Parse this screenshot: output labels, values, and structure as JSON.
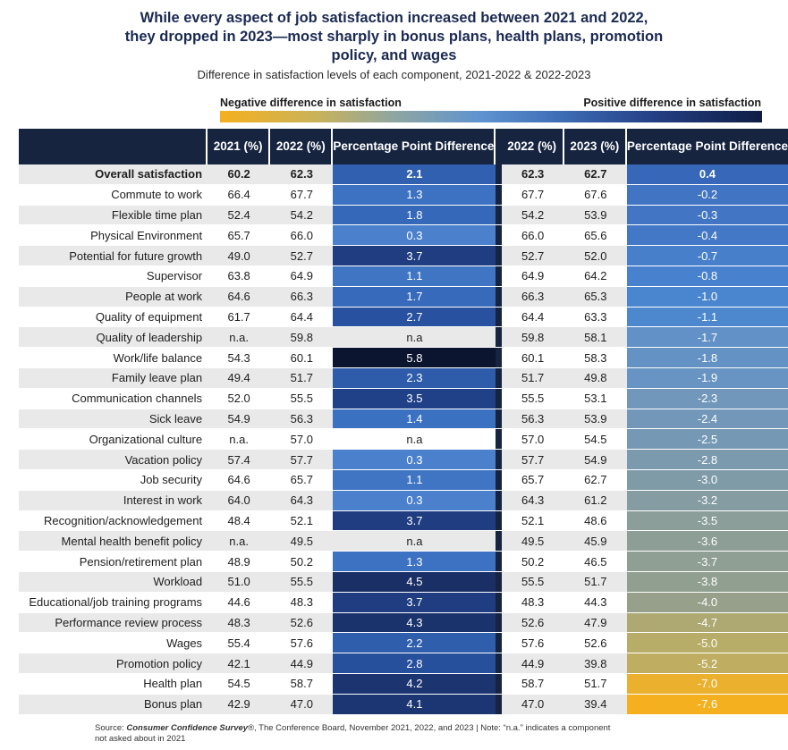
{
  "title_lines": [
    "While every aspect of job satisfaction increased between 2021 and 2022,",
    "they dropped in 2023—most sharply in bonus plans, health plans, promotion",
    "policy, and wages"
  ],
  "subtitle": "Difference in satisfaction levels of each component, 2021-2022 & 2022-2023",
  "legend": {
    "negative": "Negative difference in satisfaction",
    "positive": "Positive difference in satisfaction",
    "colors": {
      "negative": "#f5b01f",
      "mid": "#5f93d0",
      "positive": "#0f1d44"
    }
  },
  "chart_data": {
    "type": "table",
    "headers": [
      "",
      "2021 (%)",
      "2022 (%)",
      "Percentage Point Difference",
      "2022 (%)",
      "2023 (%)",
      "Percentage Point Difference"
    ],
    "rows": [
      {
        "label": "Overall satisfaction",
        "y2021": "60.2",
        "y2022a": "62.3",
        "d1": "2.1",
        "y2022b": "62.3",
        "y2023": "62.7",
        "d2": "0.4",
        "bold": true
      },
      {
        "label": "Commute to work",
        "y2021": "66.4",
        "y2022a": "67.7",
        "d1": "1.3",
        "y2022b": "67.7",
        "y2023": "67.6",
        "d2": "-0.2"
      },
      {
        "label": "Flexible time plan",
        "y2021": "52.4",
        "y2022a": "54.2",
        "d1": "1.8",
        "y2022b": "54.2",
        "y2023": "53.9",
        "d2": "-0.3"
      },
      {
        "label": "Physical Environment",
        "y2021": "65.7",
        "y2022a": "66.0",
        "d1": "0.3",
        "y2022b": "66.0",
        "y2023": "65.6",
        "d2": "-0.4"
      },
      {
        "label": "Potential for future growth",
        "y2021": "49.0",
        "y2022a": "52.7",
        "d1": "3.7",
        "y2022b": "52.7",
        "y2023": "52.0",
        "d2": "-0.7"
      },
      {
        "label": "Supervisor",
        "y2021": "63.8",
        "y2022a": "64.9",
        "d1": "1.1",
        "y2022b": "64.9",
        "y2023": "64.2",
        "d2": "-0.8"
      },
      {
        "label": "People at work",
        "y2021": "64.6",
        "y2022a": "66.3",
        "d1": "1.7",
        "y2022b": "66.3",
        "y2023": "65.3",
        "d2": "-1.0"
      },
      {
        "label": "Quality of equipment",
        "y2021": "61.7",
        "y2022a": "64.4",
        "d1": "2.7",
        "y2022b": "64.4",
        "y2023": "63.3",
        "d2": "-1.1"
      },
      {
        "label": "Quality of leadership",
        "y2021": "n.a.",
        "y2022a": "59.8",
        "d1": "n.a",
        "y2022b": "59.8",
        "y2023": "58.1",
        "d2": "-1.7"
      },
      {
        "label": "Work/life balance",
        "y2021": "54.3",
        "y2022a": "60.1",
        "d1": "5.8",
        "y2022b": "60.1",
        "y2023": "58.3",
        "d2": "-1.8"
      },
      {
        "label": "Family leave plan",
        "y2021": "49.4",
        "y2022a": "51.7",
        "d1": "2.3",
        "y2022b": "51.7",
        "y2023": "49.8",
        "d2": "-1.9"
      },
      {
        "label": "Communication channels",
        "y2021": "52.0",
        "y2022a": "55.5",
        "d1": "3.5",
        "y2022b": "55.5",
        "y2023": "53.1",
        "d2": "-2.3"
      },
      {
        "label": "Sick leave",
        "y2021": "54.9",
        "y2022a": "56.3",
        "d1": "1.4",
        "y2022b": "56.3",
        "y2023": "53.9",
        "d2": "-2.4"
      },
      {
        "label": "Organizational culture",
        "y2021": "n.a.",
        "y2022a": "57.0",
        "d1": "n.a",
        "y2022b": "57.0",
        "y2023": "54.5",
        "d2": "-2.5"
      },
      {
        "label": "Vacation policy",
        "y2021": "57.4",
        "y2022a": "57.7",
        "d1": "0.3",
        "y2022b": "57.7",
        "y2023": "54.9",
        "d2": "-2.8"
      },
      {
        "label": "Job security",
        "y2021": "64.6",
        "y2022a": "65.7",
        "d1": "1.1",
        "y2022b": "65.7",
        "y2023": "62.7",
        "d2": "-3.0"
      },
      {
        "label": "Interest in work",
        "y2021": "64.0",
        "y2022a": "64.3",
        "d1": "0.3",
        "y2022b": "64.3",
        "y2023": "61.2",
        "d2": "-3.2"
      },
      {
        "label": "Recognition/acknowledgement",
        "y2021": "48.4",
        "y2022a": "52.1",
        "d1": "3.7",
        "y2022b": "52.1",
        "y2023": "48.6",
        "d2": "-3.5"
      },
      {
        "label": "Mental health benefit policy",
        "y2021": "n.a.",
        "y2022a": "49.5",
        "d1": "n.a",
        "y2022b": "49.5",
        "y2023": "45.9",
        "d2": "-3.6"
      },
      {
        "label": "Pension/retirement plan",
        "y2021": "48.9",
        "y2022a": "50.2",
        "d1": "1.3",
        "y2022b": "50.2",
        "y2023": "46.5",
        "d2": "-3.7"
      },
      {
        "label": "Workload",
        "y2021": "51.0",
        "y2022a": "55.5",
        "d1": "4.5",
        "y2022b": "55.5",
        "y2023": "51.7",
        "d2": "-3.8"
      },
      {
        "label": "Educational/job training programs",
        "y2021": "44.6",
        "y2022a": "48.3",
        "d1": "3.7",
        "y2022b": "48.3",
        "y2023": "44.3",
        "d2": "-4.0"
      },
      {
        "label": "Performance review process",
        "y2021": "48.3",
        "y2022a": "52.6",
        "d1": "4.3",
        "y2022b": "52.6",
        "y2023": "47.9",
        "d2": "-4.7"
      },
      {
        "label": "Wages",
        "y2021": "55.4",
        "y2022a": "57.6",
        "d1": "2.2",
        "y2022b": "57.6",
        "y2023": "52.6",
        "d2": "-5.0"
      },
      {
        "label": "Promotion policy",
        "y2021": "42.1",
        "y2022a": "44.9",
        "d1": "2.8",
        "y2022b": "44.9",
        "y2023": "39.8",
        "d2": "-5.2"
      },
      {
        "label": "Health plan",
        "y2021": "54.5",
        "y2022a": "58.7",
        "d1": "4.2",
        "y2022b": "58.7",
        "y2023": "51.7",
        "d2": "-7.0"
      },
      {
        "label": "Bonus plan",
        "y2021": "42.9",
        "y2022a": "47.0",
        "d1": "4.1",
        "y2022b": "47.0",
        "y2023": "39.4",
        "d2": "-7.6"
      }
    ]
  },
  "source": {
    "prefix": "Source: ",
    "survey": "Consumer Confidence Survey",
    "rest": "®, The Conference Board, November 2021, 2022, and 2023 | Note: “n.a.” indicates a component",
    "line2": "not asked about in 2021"
  }
}
